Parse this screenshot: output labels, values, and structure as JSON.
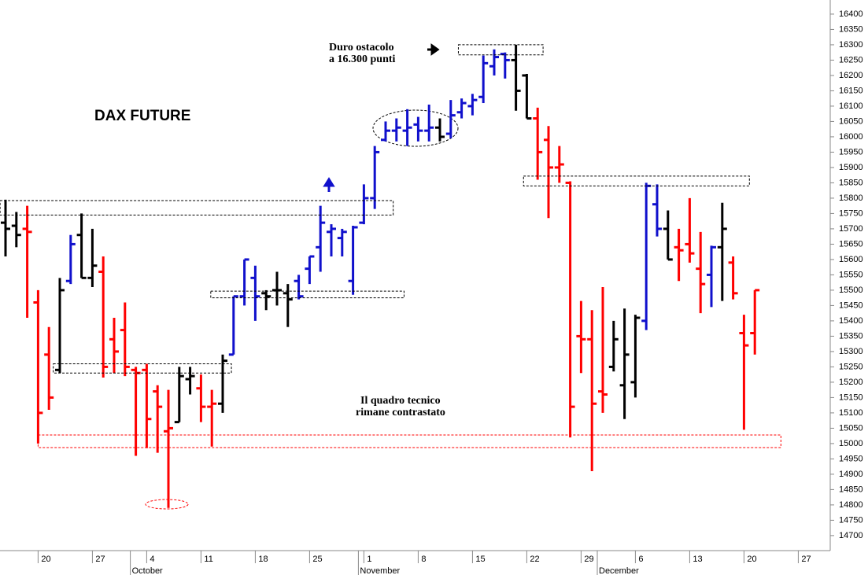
{
  "chart_data": {
    "type": "ohlc",
    "title": "DAX FUTURE",
    "categories": [
      null,
      null,
      null,
      "20",
      null,
      null,
      null,
      null,
      "27",
      null,
      null,
      null,
      null,
      "4",
      null,
      null,
      null,
      null,
      "11",
      null,
      null,
      null,
      null,
      "18",
      null,
      null,
      null,
      null,
      "25",
      null,
      null,
      null,
      null,
      "1",
      null,
      null,
      null,
      null,
      "8",
      null,
      null,
      null,
      null,
      "15",
      null,
      null,
      null,
      null,
      "22",
      null,
      null,
      null,
      null,
      "29",
      null,
      null,
      null,
      null,
      "6",
      null,
      null,
      null,
      null,
      "13",
      null,
      null,
      null,
      null,
      "20",
      null,
      null,
      null,
      null,
      "27"
    ],
    "month_labels": [
      {
        "label": "October",
        "start": 12
      },
      {
        "label": "November",
        "start": 33
      },
      {
        "label": "December",
        "start": 55
      }
    ],
    "open": [
      15720,
      15710,
      15700,
      15460,
      15290,
      15240,
      15530,
      15680,
      15540,
      15560,
      15340,
      15370,
      15240,
      15240,
      15170,
      15040,
      15070,
      15210,
      15180,
      15120,
      15130,
      15290,
      15480,
      15540,
      15490,
      15500,
      15490,
      15530,
      15570,
      15640,
      15690,
      15670,
      15530,
      15720,
      15800,
      15990,
      16020,
      16020,
      16040,
      16020,
      16030,
      16010,
      16080,
      16100,
      16130,
      16230,
      16270,
      16250,
      16200,
      16060,
      15990,
      15900,
      15850,
      15350,
      15340,
      15170,
      15250,
      15190,
      15200,
      15400,
      15780,
      15700,
      15640,
      15650,
      15570,
      15550,
      15640,
      15590,
      15360,
      15360,
      null,
      null,
      null,
      null
    ],
    "high": [
      15795,
      15755,
      15775,
      15500,
      15380,
      15540,
      15680,
      15750,
      15700,
      15610,
      15410,
      15460,
      15250,
      15260,
      15190,
      15175,
      15250,
      15250,
      15225,
      15175,
      15290,
      15480,
      15600,
      15580,
      15500,
      15560,
      15520,
      15550,
      15610,
      15775,
      15715,
      15700,
      15710,
      15845,
      15970,
      16050,
      16060,
      16090,
      16065,
      16105,
      16060,
      16120,
      16125,
      16140,
      16265,
      16285,
      16275,
      16300,
      16205,
      16095,
      16035,
      15970,
      15855,
      15465,
      15435,
      15510,
      15400,
      15440,
      15420,
      15850,
      15845,
      15760,
      15700,
      15800,
      15690,
      15645,
      15785,
      15610,
      15420,
      15500,
      null,
      null,
      null,
      null
    ],
    "low": [
      15610,
      15640,
      15410,
      15000,
      15110,
      15230,
      15520,
      15540,
      15510,
      15215,
      15230,
      15220,
      14960,
      14985,
      14970,
      14790,
      15070,
      15160,
      15070,
      14990,
      15100,
      15290,
      15450,
      15400,
      15435,
      15450,
      15380,
      15470,
      15520,
      15560,
      15610,
      15610,
      15485,
      15715,
      15765,
      15985,
      15985,
      15970,
      15985,
      15985,
      15985,
      15995,
      16060,
      16070,
      16110,
      16200,
      16190,
      16085,
      16060,
      15860,
      15735,
      15850,
      15020,
      15230,
      14910,
      15100,
      15235,
      15080,
      15150,
      15370,
      15675,
      15600,
      15530,
      15590,
      15425,
      15445,
      15465,
      15470,
      15045,
      15290,
      null,
      null,
      null,
      null
    ],
    "close": [
      15700,
      15680,
      15690,
      15100,
      15150,
      15500,
      15650,
      15540,
      15580,
      15250,
      15300,
      15250,
      15230,
      15080,
      15120,
      15050,
      15220,
      15220,
      15120,
      15130,
      15270,
      15480,
      15600,
      15480,
      15480,
      15500,
      15470,
      15480,
      15610,
      15720,
      15700,
      15690,
      15705,
      15800,
      15950,
      16020,
      16030,
      16030,
      16020,
      16030,
      16000,
      16070,
      16110,
      16120,
      16240,
      16260,
      16250,
      16150,
      16060,
      15950,
      15900,
      15910,
      15120,
      15340,
      15130,
      15160,
      15340,
      15290,
      15410,
      15840,
      15700,
      15600,
      15630,
      15620,
      15520,
      15640,
      15700,
      15490,
      15320,
      15500,
      null,
      null,
      null,
      null
    ],
    "bar_colors": [
      "#000000",
      "#000000",
      "#ff0000",
      "#ff0000",
      "#ff0000",
      "#000000",
      "#1010cc",
      "#000000",
      "#000000",
      "#ff0000",
      "#ff0000",
      "#ff0000",
      "#ff0000",
      "#ff0000",
      "#ff0000",
      "#ff0000",
      "#000000",
      "#000000",
      "#ff0000",
      "#ff0000",
      "#000000",
      "#1010cc",
      "#1010cc",
      "#1010cc",
      "#000000",
      "#000000",
      "#000000",
      "#1010cc",
      "#1010cc",
      "#1010cc",
      "#1010cc",
      "#1010cc",
      "#1010cc",
      "#1010cc",
      "#1010cc",
      "#1010cc",
      "#1010cc",
      "#1010cc",
      "#1010cc",
      "#1010cc",
      "#000000",
      "#1010cc",
      "#1010cc",
      "#1010cc",
      "#1010cc",
      "#1010cc",
      "#1010cc",
      "#000000",
      "#000000",
      "#ff0000",
      "#ff0000",
      "#ff0000",
      "#ff0000",
      "#ff0000",
      "#ff0000",
      "#ff0000",
      "#000000",
      "#000000",
      "#000000",
      "#1010cc",
      "#1010cc",
      "#000000",
      "#ff0000",
      "#ff0000",
      "#ff0000",
      "#1010cc",
      "#000000",
      "#ff0000",
      "#ff0000",
      "#ff0000",
      null,
      null,
      null,
      null
    ],
    "ylim": [
      14651,
      16446
    ],
    "yticks": [
      14700,
      14750,
      14800,
      14850,
      14900,
      14950,
      15000,
      15050,
      15100,
      15150,
      15200,
      15250,
      15300,
      15350,
      15400,
      15450,
      15500,
      15550,
      15600,
      15650,
      15700,
      15750,
      15800,
      15850,
      15900,
      15950,
      16000,
      16050,
      16100,
      16150,
      16200,
      16250,
      16300,
      16350,
      16400
    ],
    "zones": [
      {
        "y": [
          15745,
          15792
        ],
        "x": [
          -0.5,
          35.7
        ],
        "color": "#000000"
      },
      {
        "y": [
          15475,
          15497
        ],
        "x": [
          18.9,
          36.7
        ],
        "color": "#000000"
      },
      {
        "y": [
          15230,
          15260
        ],
        "x": [
          4.4,
          20.8
        ],
        "color": "#000000"
      },
      {
        "y": [
          14987,
          15028
        ],
        "x": [
          3,
          71.4
        ],
        "color": "#ff0000"
      },
      {
        "y": [
          15840,
          15872
        ],
        "x": [
          47.7,
          68.5
        ],
        "color": "#000000"
      },
      {
        "y": [
          16267,
          16300
        ],
        "x": [
          41.7,
          49.5
        ],
        "color": "#000000"
      }
    ],
    "annotations": [
      {
        "lines": [
          "Duro ostacolo",
          "a 16.300 punti"
        ]
      },
      {
        "lines": [
          "Il quadro tecnico",
          "rimane contrastato"
        ]
      }
    ]
  }
}
